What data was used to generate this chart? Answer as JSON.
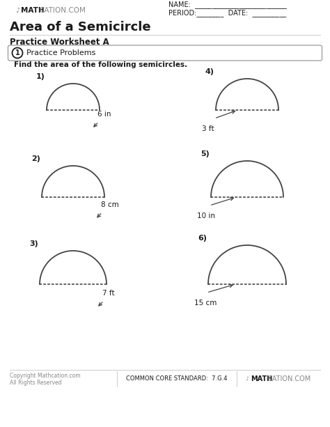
{
  "title": "Area of a Semicircle",
  "subtitle": "Practice Worksheet A",
  "logo_bold": "MATH",
  "logo_light": "CATION.COM",
  "header_name": "NAME:  ___________________________",
  "header_period": "PERIOD:________  DATE:  __________",
  "section_label": "1",
  "section_text": "Practice Problems",
  "instruction": "Find the area of the following semicircles.",
  "problems": [
    {
      "num": "1)",
      "label": "6 in",
      "col": 0,
      "row": 0
    },
    {
      "num": "2)",
      "label": "8 cm",
      "col": 0,
      "row": 1
    },
    {
      "num": "3)",
      "label": "7 ft",
      "col": 0,
      "row": 2
    },
    {
      "num": "4)",
      "label": "3 ft",
      "col": 1,
      "row": 0
    },
    {
      "num": "5)",
      "label": "10 in",
      "col": 1,
      "row": 1
    },
    {
      "num": "6)",
      "label": "15 cm",
      "col": 1,
      "row": 2
    }
  ],
  "footer_standard": "COMMON CORE STANDARD:  7.G.4",
  "footer_copy1": "Copyright Mathcation.com",
  "footer_copy2": "All Rights Reserved",
  "bg_color": "#ffffff",
  "line_color": "#444444",
  "dot_color": "#444444",
  "text_color": "#1a1a1a",
  "gray_color": "#888888",
  "banner_edge": "#999999"
}
